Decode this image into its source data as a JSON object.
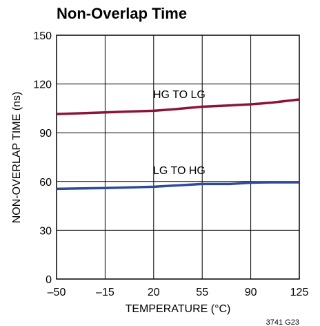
{
  "figure_code": "3741 G23",
  "chart_data": {
    "type": "line",
    "title": "Non-Overlap Time",
    "xlabel": "TEMPERATURE (°C)",
    "ylabel": "NON-OVERLAP TIME (ns)",
    "x_ticks": [
      -50,
      -15,
      20,
      55,
      90,
      125
    ],
    "y_ticks": [
      0,
      30,
      60,
      90,
      120,
      150
    ],
    "x_tick_labels": [
      "–50",
      "–15",
      "20",
      "55",
      "90",
      "125"
    ],
    "y_tick_labels": [
      "0",
      "30",
      "60",
      "90",
      "120",
      "150"
    ],
    "xlim": [
      -50,
      125
    ],
    "ylim": [
      0,
      150
    ],
    "grid": true,
    "legend": "inline labels",
    "series": [
      {
        "name": "HG TO LG",
        "color": "#8b1538",
        "x": [
          -50,
          -15,
          0,
          20,
          35,
          55,
          75,
          90,
          105,
          125
        ],
        "y": [
          101.5,
          102.5,
          103,
          103.5,
          104.5,
          106,
          106.8,
          107.5,
          108.5,
          110.5
        ]
      },
      {
        "name": "LG TO HG",
        "color": "#2e4b9b",
        "x": [
          -50,
          -15,
          0,
          20,
          35,
          55,
          75,
          90,
          105,
          125
        ],
        "y": [
          55.5,
          56,
          56.3,
          56.8,
          57.5,
          58.5,
          58.5,
          59.3,
          59.5,
          59.5
        ]
      }
    ]
  }
}
